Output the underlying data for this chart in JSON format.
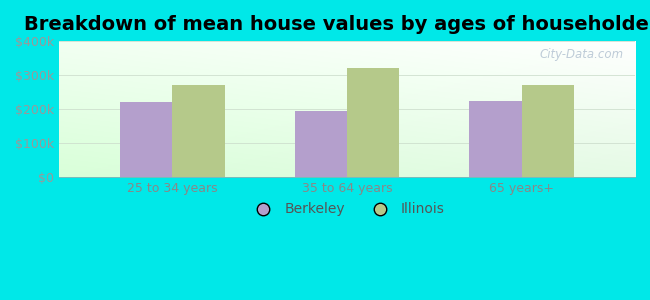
{
  "title": "Breakdown of mean house values by ages of householders",
  "categories": [
    "25 to 34 years",
    "35 to 64 years",
    "65 years+"
  ],
  "berkeley_values": [
    220000,
    195000,
    225000
  ],
  "illinois_values": [
    270000,
    320000,
    270000
  ],
  "berkeley_color": "#b49fcc",
  "illinois_color": "#b5c98a",
  "ylim": [
    0,
    400000
  ],
  "yticks": [
    0,
    100000,
    200000,
    300000,
    400000
  ],
  "ytick_labels": [
    "$0",
    "$100k",
    "$200k",
    "$300k",
    "$400k"
  ],
  "background_outer": "#00e8e8",
  "bar_width": 0.3,
  "legend_labels": [
    "Berkeley",
    "Illinois"
  ],
  "title_fontsize": 14,
  "tick_fontsize": 9,
  "legend_fontsize": 10,
  "watermark": "City-Data.com",
  "grid_color": "#ddeedc"
}
